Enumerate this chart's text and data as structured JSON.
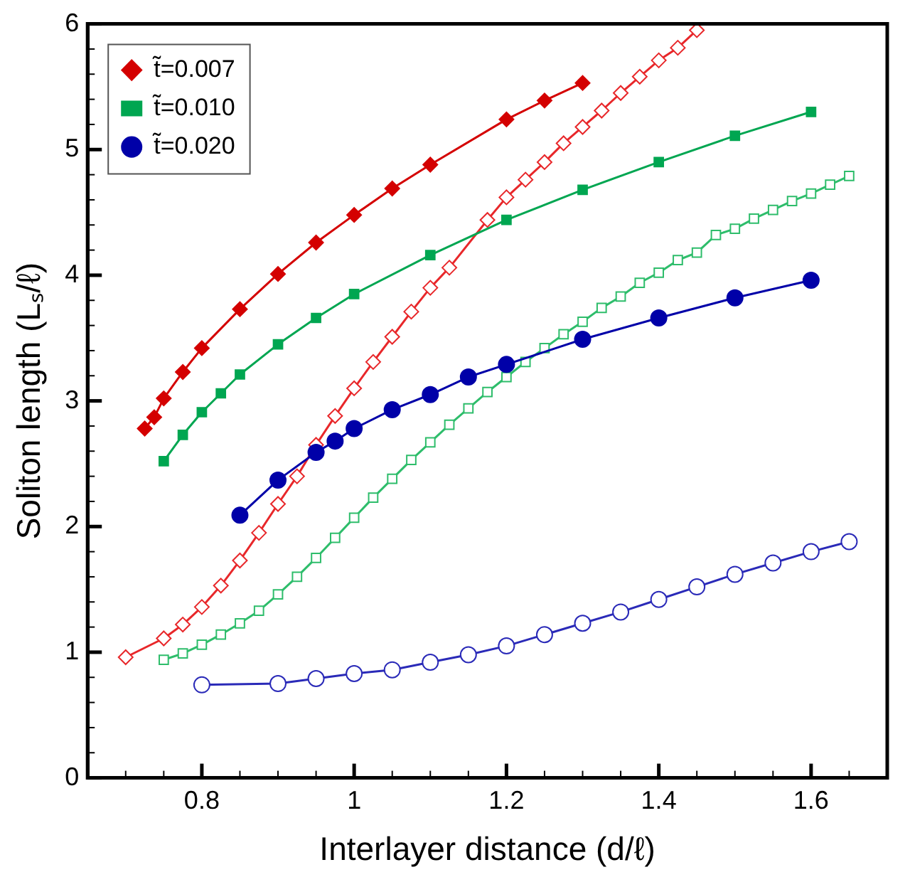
{
  "chart_data": {
    "type": "line",
    "xlabel": "Interlayer distance (d/ℓ)",
    "ylabel": "Soliton length (Lₛ/ℓ)",
    "xlim": [
      0.65,
      1.7
    ],
    "ylim": [
      0,
      6
    ],
    "xticks": [
      {
        "value": 0.7,
        "label": null
      },
      {
        "value": 0.75,
        "label": null
      },
      0.8,
      {
        "value": 0.85,
        "label": null
      },
      {
        "value": 0.9,
        "label": null
      },
      {
        "value": 0.95,
        "label": null
      },
      1,
      {
        "value": 1.05,
        "label": null
      },
      {
        "value": 1.1,
        "label": null
      },
      {
        "value": 1.15,
        "label": null
      },
      1.2,
      {
        "value": 1.25,
        "label": null
      },
      {
        "value": 1.3,
        "label": null
      },
      {
        "value": 1.35,
        "label": null
      },
      1.4,
      {
        "value": 1.45,
        "label": null
      },
      {
        "value": 1.5,
        "label": null
      },
      {
        "value": 1.55,
        "label": null
      },
      1.6,
      {
        "value": 1.65,
        "label": null
      }
    ],
    "yticks": [
      0,
      {
        "value": 0.2,
        "label": null
      },
      {
        "value": 0.4,
        "label": null
      },
      {
        "value": 0.6,
        "label": null
      },
      {
        "value": 0.8,
        "label": null
      },
      1,
      {
        "value": 1.2,
        "label": null
      },
      {
        "value": 1.4,
        "label": null
      },
      {
        "value": 1.6,
        "label": null
      },
      {
        "value": 1.8,
        "label": null
      },
      2,
      {
        "value": 2.2,
        "label": null
      },
      {
        "value": 2.4,
        "label": null
      },
      {
        "value": 2.6,
        "label": null
      },
      {
        "value": 2.8,
        "label": null
      },
      3,
      {
        "value": 3.2,
        "label": null
      },
      {
        "value": 3.4,
        "label": null
      },
      {
        "value": 3.6,
        "label": null
      },
      {
        "value": 3.8,
        "label": null
      },
      4,
      {
        "value": 4.2,
        "label": null
      },
      {
        "value": 4.4,
        "label": null
      },
      {
        "value": 4.6,
        "label": null
      },
      {
        "value": 4.8,
        "label": null
      },
      5,
      {
        "value": 5.2,
        "label": null
      },
      {
        "value": 5.4,
        "label": null
      },
      {
        "value": 5.6,
        "label": null
      },
      {
        "value": 5.8,
        "label": null
      },
      6
    ],
    "grid": false,
    "legend": "top left",
    "line_style": "solid",
    "series": [
      {
        "name": "t̃=0.007",
        "color": "#d40000",
        "marker": "diamond",
        "x": [
          0.725,
          0.7375,
          0.75,
          0.775,
          0.8,
          0.85,
          0.9,
          0.95,
          1.0,
          1.05,
          1.1,
          1.2,
          1.25,
          1.3
        ],
        "values": [
          2.78,
          2.87,
          3.02,
          3.23,
          3.42,
          3.73,
          4.01,
          4.26,
          4.48,
          4.69,
          4.88,
          5.24,
          5.39,
          5.53
        ]
      },
      {
        "name": "t̃=0.010",
        "color": "#00a651",
        "marker": "square",
        "x": [
          0.75,
          0.775,
          0.8,
          0.825,
          0.85,
          0.9,
          0.95,
          1.0,
          1.1,
          1.2,
          1.3,
          1.4,
          1.5,
          1.6
        ],
        "values": [
          2.52,
          2.73,
          2.91,
          3.06,
          3.21,
          3.45,
          3.66,
          3.85,
          4.16,
          4.44,
          4.68,
          4.9,
          5.11,
          5.3
        ]
      },
      {
        "name": "t̃=0.020",
        "color": "#0000a8",
        "marker": "circle",
        "x": [
          0.85,
          0.9,
          0.95,
          0.975,
          1.0,
          1.05,
          1.1,
          1.15,
          1.2,
          1.3,
          1.4,
          1.5,
          1.6
        ],
        "values": [
          2.09,
          2.37,
          2.59,
          2.68,
          2.78,
          2.93,
          3.05,
          3.19,
          3.29,
          3.49,
          3.66,
          3.82,
          3.96
        ]
      },
      {
        "color": "#e8272a",
        "marker": "diamond",
        "x": [
          0.7,
          0.75,
          0.775,
          0.8,
          0.825,
          0.85,
          0.875,
          0.9,
          0.925,
          0.95,
          0.975,
          1.0,
          1.025,
          1.05,
          1.075,
          1.1,
          1.125,
          1.175,
          1.2,
          1.225,
          1.25,
          1.275,
          1.3,
          1.325,
          1.35,
          1.375,
          1.4,
          1.425,
          1.45
        ],
        "values": [
          0.96,
          1.11,
          1.22,
          1.36,
          1.53,
          1.73,
          1.95,
          2.18,
          2.4,
          2.65,
          2.88,
          3.1,
          3.31,
          3.51,
          3.71,
          3.9,
          4.06,
          4.44,
          4.62,
          4.76,
          4.9,
          5.05,
          5.18,
          5.31,
          5.45,
          5.58,
          5.71,
          5.81,
          5.95
        ]
      },
      {
        "color": "#2ebd6b",
        "marker": "square",
        "x": [
          0.75,
          0.775,
          0.8,
          0.825,
          0.85,
          0.875,
          0.9,
          0.925,
          0.95,
          0.975,
          1.0,
          1.025,
          1.05,
          1.075,
          1.1,
          1.125,
          1.15,
          1.175,
          1.2,
          1.225,
          1.25,
          1.275,
          1.3,
          1.325,
          1.35,
          1.375,
          1.4,
          1.425,
          1.45,
          1.475,
          1.5,
          1.525,
          1.55,
          1.575,
          1.6,
          1.625,
          1.65
        ],
        "values": [
          0.94,
          0.99,
          1.06,
          1.14,
          1.23,
          1.33,
          1.46,
          1.6,
          1.75,
          1.91,
          2.07,
          2.23,
          2.38,
          2.53,
          2.67,
          2.81,
          2.94,
          3.07,
          3.19,
          3.31,
          3.42,
          3.53,
          3.63,
          3.74,
          3.83,
          3.94,
          4.02,
          4.12,
          4.18,
          4.32,
          4.37,
          4.45,
          4.52,
          4.59,
          4.65,
          4.72,
          4.79
        ]
      },
      {
        "color": "#2a2ab8",
        "marker": "circle",
        "x": [
          0.8,
          0.9,
          0.95,
          1.0,
          1.05,
          1.1,
          1.15,
          1.2,
          1.25,
          1.3,
          1.35,
          1.4,
          1.45,
          1.5,
          1.55,
          1.6,
          1.65
        ],
        "values": [
          0.74,
          0.75,
          0.79,
          0.83,
          0.86,
          0.92,
          0.98,
          1.05,
          1.14,
          1.23,
          1.32,
          1.42,
          1.52,
          1.62,
          1.71,
          1.8,
          1.88
        ]
      }
    ]
  }
}
